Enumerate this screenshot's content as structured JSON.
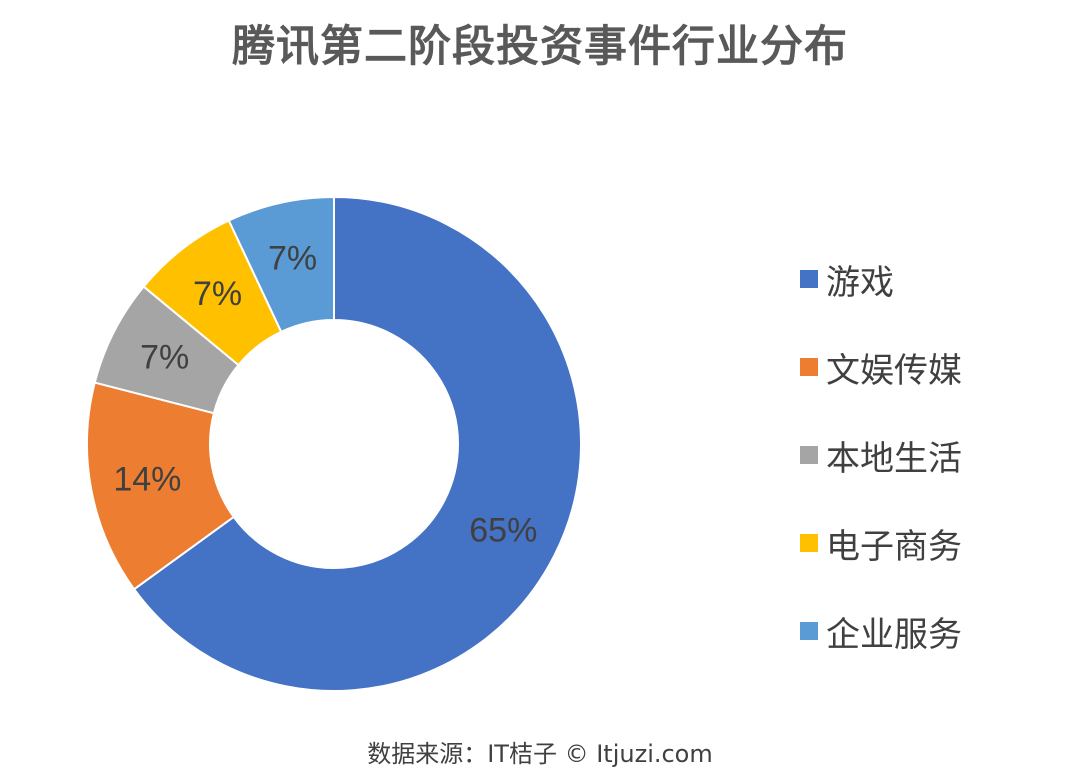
{
  "chart_data": {
    "type": "pie",
    "variant": "donut",
    "title": "腾讯第二阶段投资事件行业分布",
    "categories": [
      "游戏",
      "文娱传媒",
      "本地生活",
      "电子商务",
      "企业服务"
    ],
    "values": [
      65,
      14,
      7,
      7,
      7
    ],
    "value_labels": [
      "65%",
      "14%",
      "7%",
      "7%",
      "7%"
    ],
    "colors": [
      "#4472C4",
      "#ED7D31",
      "#A5A5A5",
      "#FFC000",
      "#5B9BD5"
    ],
    "legend": "right"
  },
  "source_text": "数据来源：IT桔子 © Itjuzi.com"
}
